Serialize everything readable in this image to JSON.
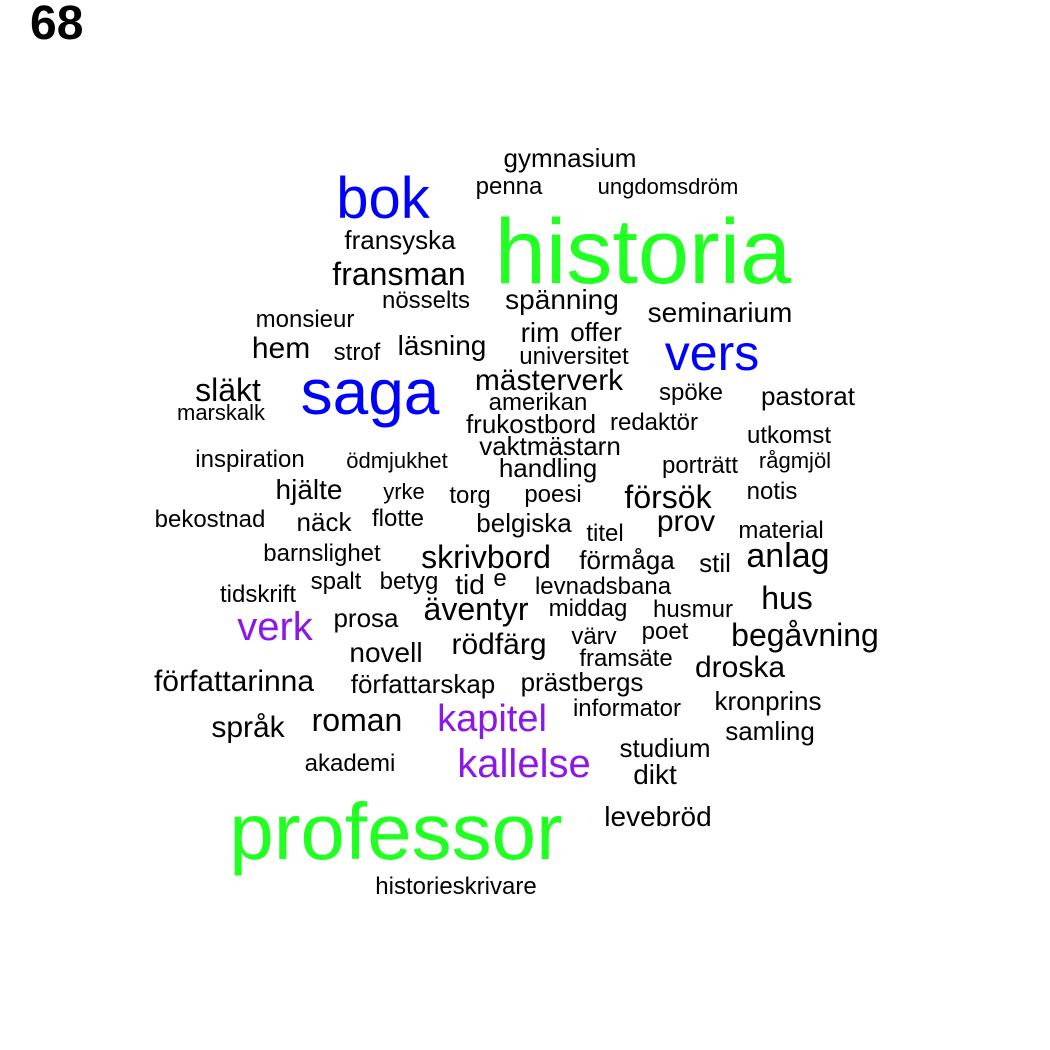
{
  "page_number": "68",
  "colors": {
    "green": "#22ff22",
    "blue": "#0000ff",
    "purple": "#8b18e8",
    "black": "#000000"
  },
  "words": [
    {
      "text": "historia",
      "color": "green"
    },
    {
      "text": "professor",
      "color": "green"
    },
    {
      "text": "saga",
      "color": "blue"
    },
    {
      "text": "bok",
      "color": "blue"
    },
    {
      "text": "vers",
      "color": "blue"
    },
    {
      "text": "verk",
      "color": "purple"
    },
    {
      "text": "kapitel",
      "color": "purple"
    },
    {
      "text": "kallelse",
      "color": "purple"
    },
    {
      "text": "gymnasium",
      "color": "black"
    },
    {
      "text": "penna",
      "color": "black"
    },
    {
      "text": "ungdomsdröm",
      "color": "black"
    },
    {
      "text": "fransyska",
      "color": "black"
    },
    {
      "text": "fransman",
      "color": "black"
    },
    {
      "text": "nösselts",
      "color": "black"
    },
    {
      "text": "spänning",
      "color": "black"
    },
    {
      "text": "seminarium",
      "color": "black"
    },
    {
      "text": "monsieur",
      "color": "black"
    },
    {
      "text": "rim",
      "color": "black"
    },
    {
      "text": "offer",
      "color": "black"
    },
    {
      "text": "hem",
      "color": "black"
    },
    {
      "text": "strof",
      "color": "black"
    },
    {
      "text": "läsning",
      "color": "black"
    },
    {
      "text": "universitet",
      "color": "black"
    },
    {
      "text": "släkt",
      "color": "black"
    },
    {
      "text": "mästerverk",
      "color": "black"
    },
    {
      "text": "spöke",
      "color": "black"
    },
    {
      "text": "pastorat",
      "color": "black"
    },
    {
      "text": "marskalk",
      "color": "black"
    },
    {
      "text": "amerikan",
      "color": "black"
    },
    {
      "text": "frukostbord",
      "color": "black"
    },
    {
      "text": "redaktör",
      "color": "black"
    },
    {
      "text": "utkomst",
      "color": "black"
    },
    {
      "text": "vaktmästarn",
      "color": "black"
    },
    {
      "text": "inspiration",
      "color": "black"
    },
    {
      "text": "ödmjukhet",
      "color": "black"
    },
    {
      "text": "handling",
      "color": "black"
    },
    {
      "text": "porträtt",
      "color": "black"
    },
    {
      "text": "rågmjöl",
      "color": "black"
    },
    {
      "text": "hjälte",
      "color": "black"
    },
    {
      "text": "yrke",
      "color": "black"
    },
    {
      "text": "torg",
      "color": "black"
    },
    {
      "text": "poesi",
      "color": "black"
    },
    {
      "text": "försök",
      "color": "black"
    },
    {
      "text": "notis",
      "color": "black"
    },
    {
      "text": "bekostnad",
      "color": "black"
    },
    {
      "text": "näck",
      "color": "black"
    },
    {
      "text": "flotte",
      "color": "black"
    },
    {
      "text": "belgiska",
      "color": "black"
    },
    {
      "text": "titel",
      "color": "black"
    },
    {
      "text": "prov",
      "color": "black"
    },
    {
      "text": "material",
      "color": "black"
    },
    {
      "text": "barnslighet",
      "color": "black"
    },
    {
      "text": "skrivbord",
      "color": "black"
    },
    {
      "text": "förmåga",
      "color": "black"
    },
    {
      "text": "stil",
      "color": "black"
    },
    {
      "text": "anlag",
      "color": "black"
    },
    {
      "text": "tidskrift",
      "color": "black"
    },
    {
      "text": "spalt",
      "color": "black"
    },
    {
      "text": "betyg",
      "color": "black"
    },
    {
      "text": "tid",
      "color": "black"
    },
    {
      "text": "e",
      "color": "black"
    },
    {
      "text": "levnadsbana",
      "color": "black"
    },
    {
      "text": "hus",
      "color": "black"
    },
    {
      "text": "prosa",
      "color": "black"
    },
    {
      "text": "äventyr",
      "color": "black"
    },
    {
      "text": "middag",
      "color": "black"
    },
    {
      "text": "husmur",
      "color": "black"
    },
    {
      "text": "novell",
      "color": "black"
    },
    {
      "text": "rödfärg",
      "color": "black"
    },
    {
      "text": "värv",
      "color": "black"
    },
    {
      "text": "poet",
      "color": "black"
    },
    {
      "text": "begåvning",
      "color": "black"
    },
    {
      "text": "framsäte",
      "color": "black"
    },
    {
      "text": "droska",
      "color": "black"
    },
    {
      "text": "författarinna",
      "color": "black"
    },
    {
      "text": "författarskap",
      "color": "black"
    },
    {
      "text": "prästbergs",
      "color": "black"
    },
    {
      "text": "kronprins",
      "color": "black"
    },
    {
      "text": "informator",
      "color": "black"
    },
    {
      "text": "roman",
      "color": "black"
    },
    {
      "text": "språk",
      "color": "black"
    },
    {
      "text": "samling",
      "color": "black"
    },
    {
      "text": "studium",
      "color": "black"
    },
    {
      "text": "akademi",
      "color": "black"
    },
    {
      "text": "dikt",
      "color": "black"
    },
    {
      "text": "levebröd",
      "color": "black"
    },
    {
      "text": "historieskrivare",
      "color": "black"
    }
  ]
}
